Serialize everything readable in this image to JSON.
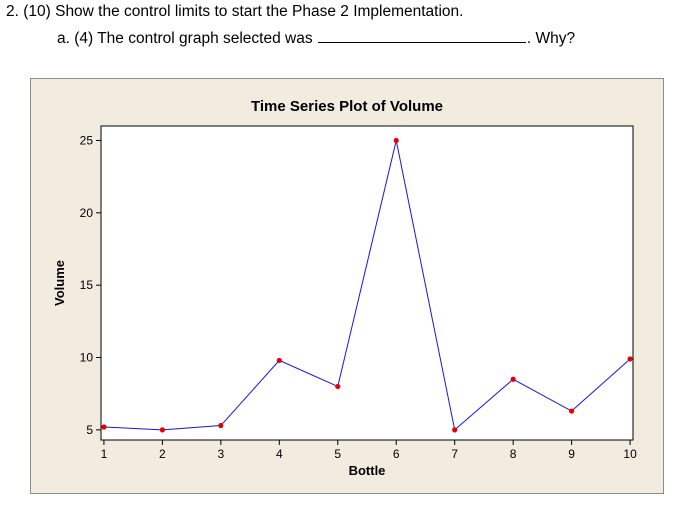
{
  "question": {
    "main": "2.  (10) Show the control limits to start the Phase 2 Implementation.",
    "sub_prefix": "a.   (4) The control graph selected was",
    "sub_suffix": ". Why?"
  },
  "chart_data": {
    "type": "line",
    "title": "Time Series Plot of Volume",
    "xlabel": "Bottle",
    "ylabel": "Volume",
    "x": [
      1,
      2,
      3,
      4,
      5,
      6,
      7,
      8,
      9,
      10
    ],
    "series": [
      {
        "values": [
          5.2,
          5.0,
          5.3,
          9.8,
          8.0,
          25.0,
          5.0,
          8.5,
          6.3,
          9.9
        ]
      }
    ],
    "xticks": [
      1,
      2,
      3,
      4,
      5,
      6,
      7,
      8,
      9,
      10
    ],
    "yticks": [
      5,
      10,
      15,
      20,
      25
    ],
    "xlim": [
      0.95,
      10.05
    ],
    "ylim": [
      4.3,
      26.0
    ],
    "line_color": "#1515e6",
    "marker_color": "#e60000",
    "plot_bg": "#ffffff",
    "frame_bg": "#f2ebe0",
    "grid": false
  }
}
